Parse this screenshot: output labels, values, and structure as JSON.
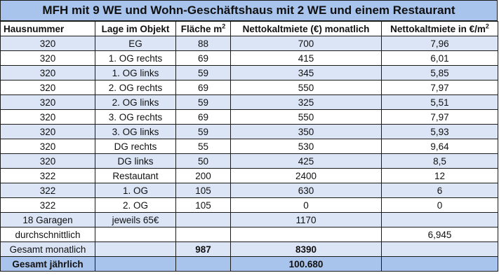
{
  "title": "MFH mit 9 WE und Wohn-Geschäftshaus mit 2 WE und einem Restaurant",
  "headers": {
    "hausnummer": "Hausnummer",
    "lage": "Lage im Objekt",
    "flaeche": "Fläche m",
    "flaeche_sup": "2",
    "miete": "Nettokaltmiete (€) monatlich",
    "miete_qm": "Nettokaltmiete in €/m",
    "miete_qm_sup": "2"
  },
  "rows": [
    {
      "haus": "320",
      "lage": "EG",
      "flaeche": "88",
      "miete": "700",
      "qm": "7,96"
    },
    {
      "haus": "320",
      "lage": "1. OG rechts",
      "flaeche": "69",
      "miete": "415",
      "qm": "6,01"
    },
    {
      "haus": "320",
      "lage": "1. OG links",
      "flaeche": "59",
      "miete": "345",
      "qm": "5,85"
    },
    {
      "haus": "320",
      "lage": "2. OG rechts",
      "flaeche": "69",
      "miete": "550",
      "qm": "7,97"
    },
    {
      "haus": "320",
      "lage": "2. OG links",
      "flaeche": "59",
      "miete": "325",
      "qm": "5,51"
    },
    {
      "haus": "320",
      "lage": "3. OG rechts",
      "flaeche": "69",
      "miete": "550",
      "qm": "7,97"
    },
    {
      "haus": "320",
      "lage": "3. OG links",
      "flaeche": "59",
      "miete": "350",
      "qm": "5,93"
    },
    {
      "haus": "320",
      "lage": "DG rechts",
      "flaeche": "55",
      "miete": "530",
      "qm": "9,64"
    },
    {
      "haus": "320",
      "lage": "DG links",
      "flaeche": "50",
      "miete": "425",
      "qm": "8,5"
    },
    {
      "haus": "322",
      "lage": "Restautant",
      "flaeche": "200",
      "miete": "2400",
      "qm": "12"
    },
    {
      "haus": "322",
      "lage": "1. OG",
      "flaeche": "105",
      "miete": "630",
      "qm": "6"
    },
    {
      "haus": "322",
      "lage": "2. OG",
      "flaeche": "105",
      "miete": "0",
      "qm": "0"
    }
  ],
  "garagen": {
    "label": "18 Garagen",
    "lage": "jeweils 65€",
    "miete": "1170"
  },
  "durchschnitt": {
    "label": "durchschnittlich",
    "qm": "6,945"
  },
  "gesamt_monatlich": {
    "label": "Gesamt monatlich",
    "flaeche": "987",
    "miete": "8390"
  },
  "gesamt_jaehrlich": {
    "label": "Gesamt jährlich",
    "miete": "100.680"
  },
  "colors": {
    "title_bg": "#a9c4ec",
    "band_bg": "#dbe5f6",
    "total_bg": "#a9c4ec"
  }
}
